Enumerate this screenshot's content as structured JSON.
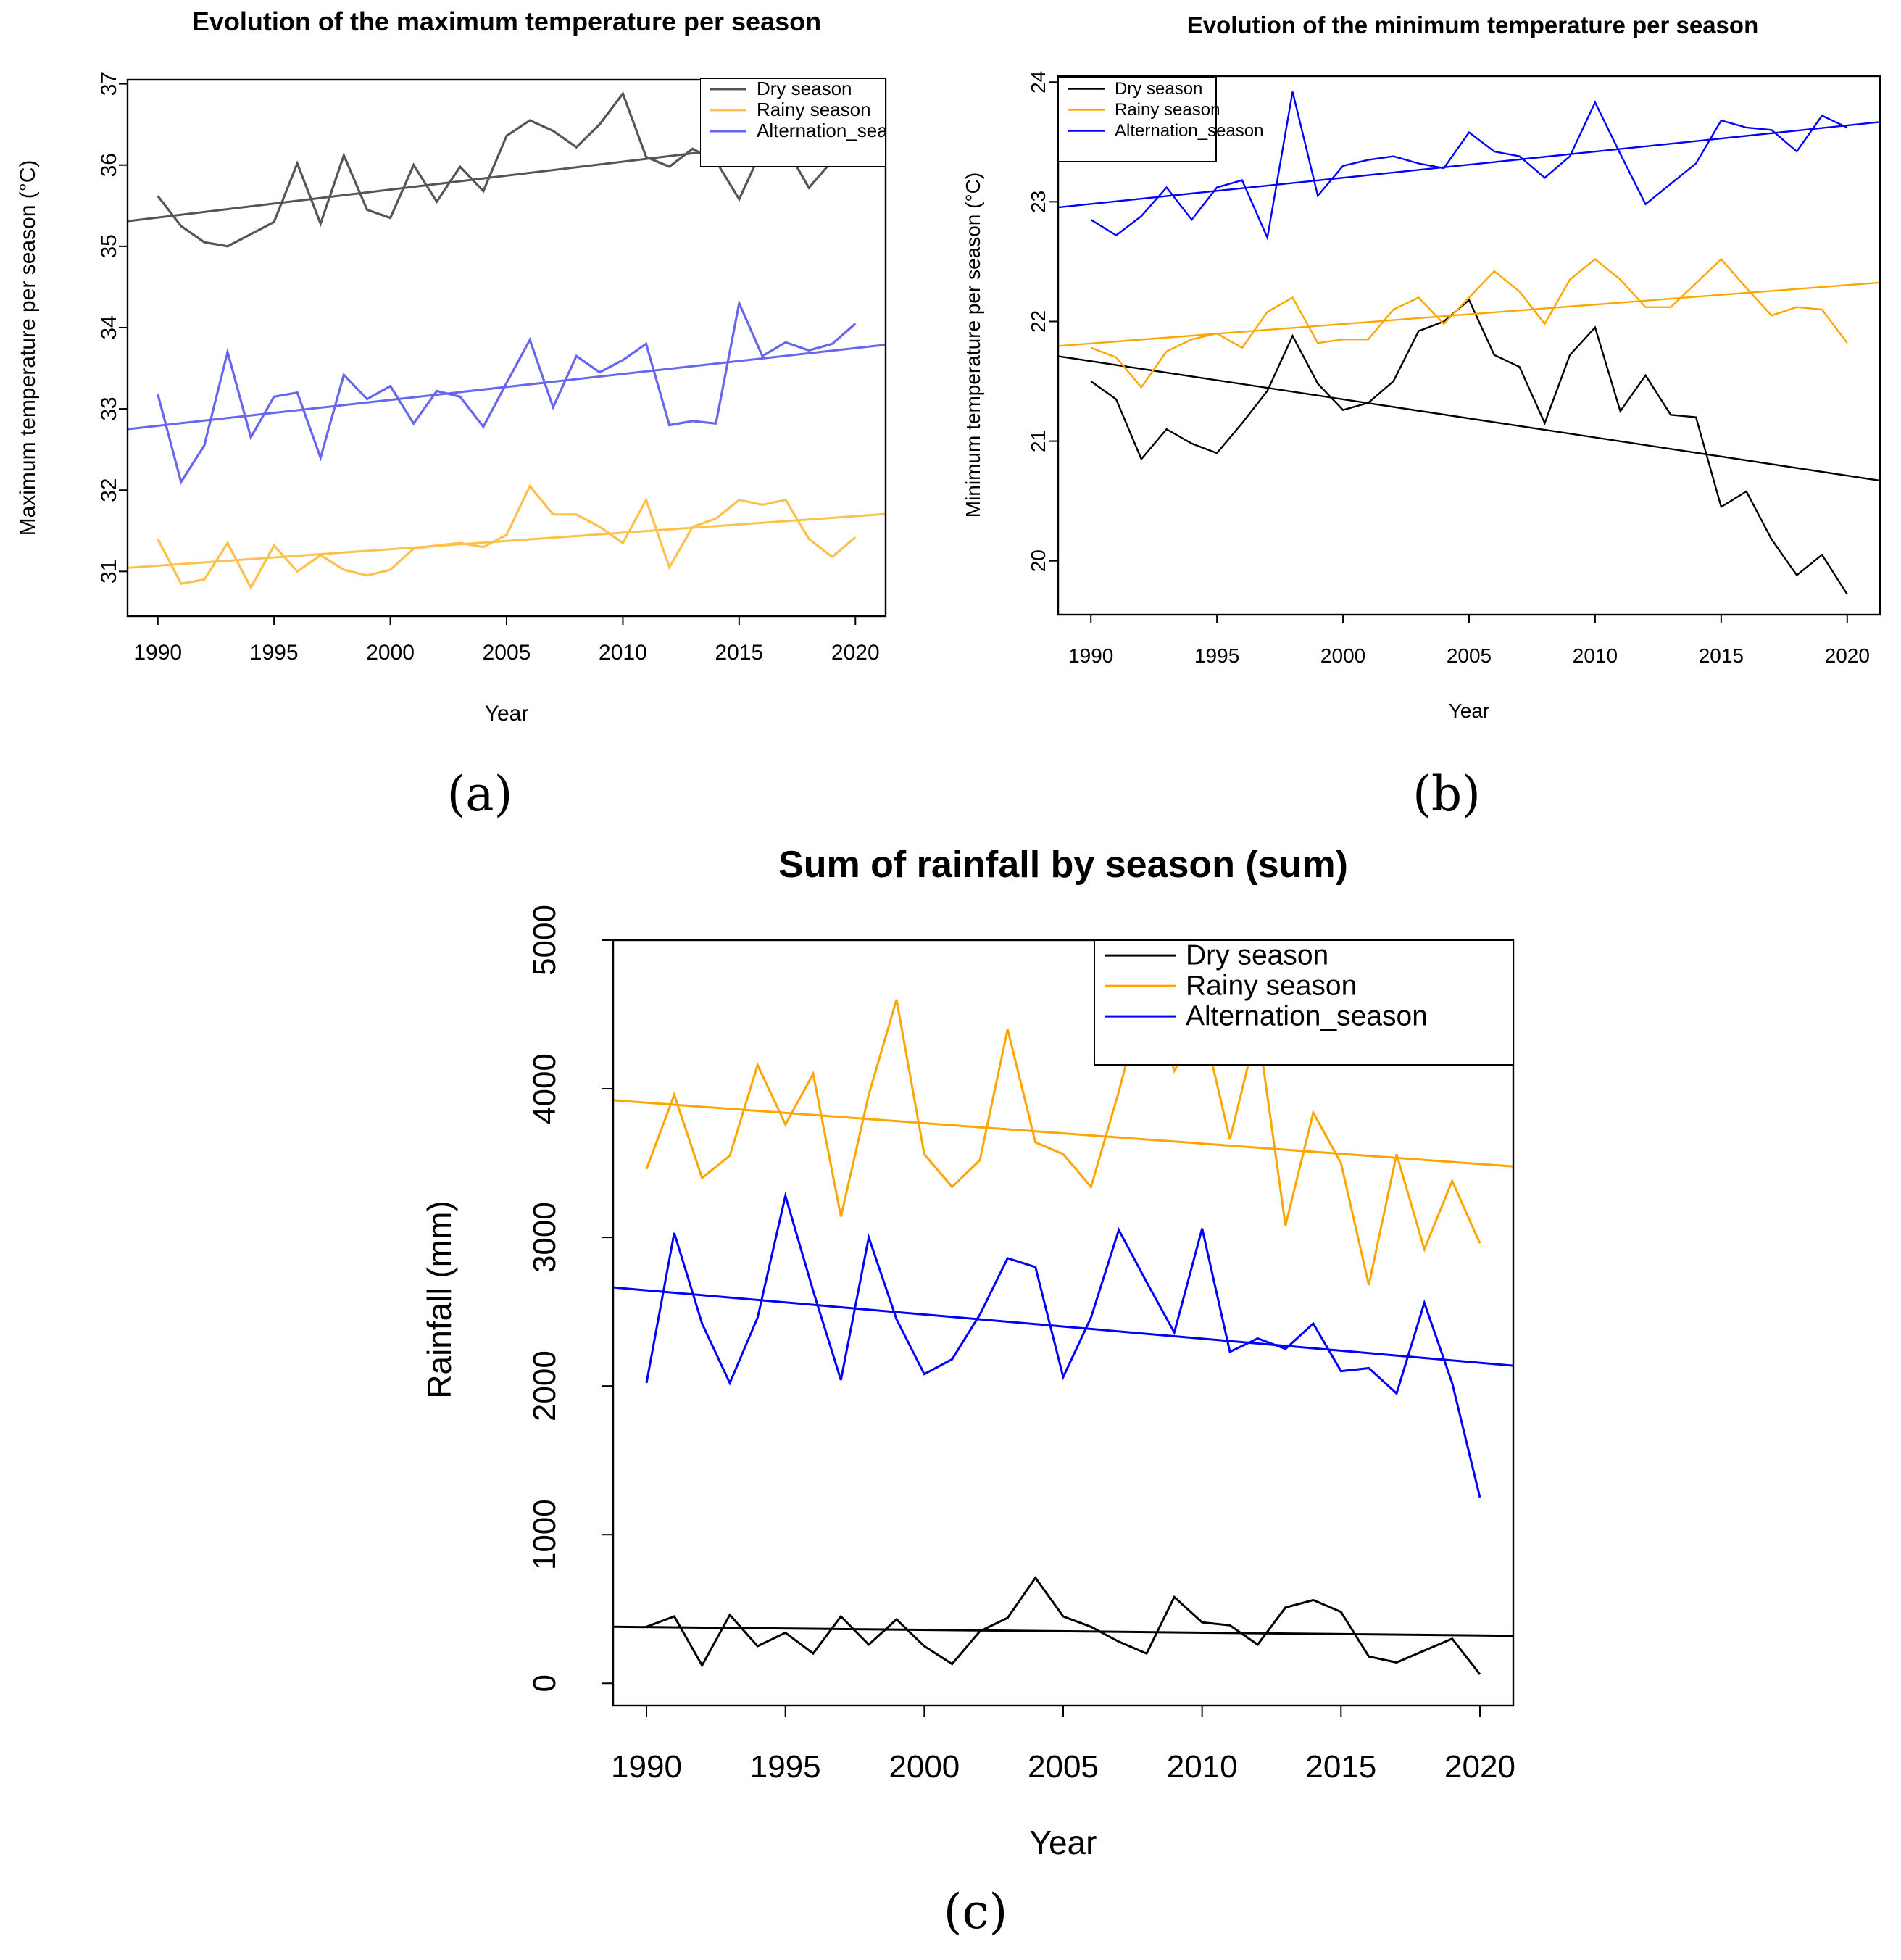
{
  "figure_labels": [
    "(a)",
    "(b)",
    "(c)"
  ],
  "chart_data": [
    {
      "id": "a",
      "type": "line",
      "title": "Evolution of the maximum temperature per season",
      "xlabel": "Year",
      "ylabel": "Maximum temperature per season (°C)",
      "xlim": [
        1988.7,
        2021.3
      ],
      "ylim": [
        30.45,
        37.05
      ],
      "xticks": [
        1990,
        1995,
        2000,
        2005,
        2010,
        2015,
        2020
      ],
      "yticks": [
        31,
        32,
        33,
        34,
        35,
        36,
        37
      ],
      "grid": false,
      "legend_position": "top-right",
      "legend_entries": [
        "Dry season",
        "Rainy season",
        "Alternation_sea"
      ],
      "x": [
        1990,
        1991,
        1992,
        1993,
        1994,
        1995,
        1996,
        1997,
        1998,
        1999,
        2000,
        2001,
        2002,
        2003,
        2004,
        2005,
        2006,
        2007,
        2008,
        2009,
        2010,
        2011,
        2012,
        2013,
        2014,
        2015,
        2016,
        2017,
        2018,
        2019,
        2020
      ],
      "series": [
        {
          "name": "Dry season",
          "color": "#555555",
          "values": [
            35.62,
            35.25,
            35.05,
            35.0,
            35.15,
            35.3,
            36.02,
            35.28,
            36.12,
            35.45,
            35.35,
            36.0,
            35.55,
            35.98,
            35.68,
            36.36,
            36.55,
            36.42,
            36.22,
            36.5,
            36.88,
            36.1,
            35.98,
            36.2,
            36.05,
            35.58,
            36.2,
            36.22,
            35.72,
            36.05,
            36.2
          ],
          "trend": [
            35.32,
            36.42
          ]
        },
        {
          "name": "Rainy season",
          "color": "#FFC04D",
          "values": [
            31.4,
            30.85,
            30.9,
            31.35,
            30.8,
            31.32,
            31.0,
            31.2,
            31.02,
            30.95,
            31.02,
            31.28,
            31.32,
            31.35,
            31.3,
            31.45,
            32.05,
            31.7,
            31.7,
            31.55,
            31.35,
            31.88,
            31.05,
            31.55,
            31.65,
            31.88,
            31.82,
            31.88,
            31.4,
            31.18,
            31.42
          ],
          "trend": [
            31.05,
            31.7
          ]
        },
        {
          "name": "Alternation_season",
          "color": "#6666EE",
          "values": [
            33.18,
            32.1,
            32.55,
            33.7,
            32.65,
            33.15,
            33.2,
            32.4,
            33.42,
            33.12,
            33.28,
            32.82,
            33.22,
            33.15,
            32.78,
            33.32,
            33.85,
            33.02,
            33.65,
            33.45,
            33.6,
            33.8,
            32.8,
            32.85,
            32.82,
            34.3,
            33.65,
            33.82,
            33.72,
            33.8,
            34.05
          ],
          "trend": [
            32.76,
            33.78
          ]
        }
      ]
    },
    {
      "id": "b",
      "type": "line",
      "title": "Evolution of the minimum temperature per season",
      "xlabel": "Year",
      "ylabel": "Minimum temperature per season (°C)",
      "xlim": [
        1988.7,
        2021.3
      ],
      "ylim": [
        19.55,
        24.05
      ],
      "xticks": [
        1990,
        1995,
        2000,
        2005,
        2010,
        2015,
        2020
      ],
      "yticks": [
        20,
        21,
        22,
        23,
        24
      ],
      "grid": false,
      "legend_position": "top-left",
      "legend_entries": [
        "Dry season",
        "Rainy season",
        "Alternation_season"
      ],
      "x": [
        1990,
        1991,
        1992,
        1993,
        1994,
        1995,
        1996,
        1997,
        1998,
        1999,
        2000,
        2001,
        2002,
        2003,
        2004,
        2005,
        2006,
        2007,
        2008,
        2009,
        2010,
        2011,
        2012,
        2013,
        2014,
        2015,
        2016,
        2017,
        2018,
        2019,
        2020
      ],
      "series": [
        {
          "name": "Dry season",
          "color": "#000000",
          "values": [
            21.5,
            21.35,
            20.85,
            21.1,
            20.98,
            20.9,
            21.15,
            21.42,
            21.88,
            21.48,
            21.26,
            21.32,
            21.5,
            21.92,
            22.0,
            22.18,
            21.72,
            21.62,
            21.15,
            21.72,
            21.95,
            21.25,
            21.55,
            21.22,
            21.2,
            20.45,
            20.58,
            20.18,
            19.88,
            20.05,
            19.72
          ],
          "trend": [
            21.7,
            20.68
          ]
        },
        {
          "name": "Rainy season",
          "color": "#FFA500",
          "values": [
            21.78,
            21.7,
            21.45,
            21.75,
            21.85,
            21.9,
            21.78,
            22.08,
            22.2,
            21.82,
            21.85,
            21.85,
            22.1,
            22.2,
            21.98,
            22.2,
            22.42,
            22.25,
            21.98,
            22.35,
            22.52,
            22.35,
            22.12,
            22.12,
            22.32,
            22.52,
            22.28,
            22.05,
            22.12,
            22.1,
            21.82
          ],
          "trend": [
            21.8,
            22.32
          ]
        },
        {
          "name": "Alternation_season",
          "color": "#0000FF",
          "values": [
            22.85,
            22.72,
            22.88,
            23.12,
            22.85,
            23.12,
            23.18,
            22.7,
            23.92,
            23.05,
            23.3,
            23.35,
            23.38,
            23.32,
            23.28,
            23.58,
            23.42,
            23.38,
            23.2,
            23.38,
            23.83,
            23.4,
            22.98,
            23.15,
            23.32,
            23.68,
            23.62,
            23.6,
            23.42,
            23.72,
            23.62
          ],
          "trend": [
            22.96,
            23.66
          ]
        }
      ]
    },
    {
      "id": "c",
      "type": "line",
      "title": "Sum of rainfall by season (sum)",
      "xlabel": "Year",
      "ylabel": "Rainfall (mm)",
      "xlim": [
        1988.8,
        2021.2
      ],
      "ylim": [
        -150,
        5000
      ],
      "xticks": [
        1990,
        1995,
        2000,
        2005,
        2010,
        2015,
        2020
      ],
      "yticks": [
        0,
        1000,
        2000,
        3000,
        4000,
        5000
      ],
      "grid": false,
      "legend_position": "top-right",
      "legend_entries": [
        "Dry season",
        "Rainy season",
        "Alternation_season"
      ],
      "x": [
        1990,
        1991,
        1992,
        1993,
        1994,
        1995,
        1996,
        1997,
        1998,
        1999,
        2000,
        2001,
        2002,
        2003,
        2004,
        2005,
        2006,
        2007,
        2008,
        2009,
        2010,
        2011,
        2012,
        2013,
        2014,
        2015,
        2016,
        2017,
        2018,
        2019,
        2020
      ],
      "series": [
        {
          "name": "Dry season",
          "color": "#000000",
          "values": [
            380,
            450,
            120,
            460,
            250,
            340,
            200,
            450,
            260,
            430,
            250,
            130,
            350,
            440,
            710,
            450,
            380,
            280,
            200,
            580,
            410,
            390,
            260,
            510,
            560,
            480,
            180,
            140,
            220,
            300,
            60
          ],
          "trend": [
            380,
            320
          ]
        },
        {
          "name": "Rainy season",
          "color": "#FFA500",
          "values": [
            3460,
            3960,
            3400,
            3550,
            4160,
            3760,
            4100,
            3140,
            3960,
            4600,
            3560,
            3340,
            3520,
            4400,
            3640,
            3560,
            3340,
            3980,
            4700,
            4120,
            4460,
            3660,
            4420,
            3080,
            3840,
            3500,
            2680,
            3560,
            2920,
            3380,
            2960
          ],
          "trend": [
            3920,
            3480
          ]
        },
        {
          "name": "Alternation_season",
          "color": "#0000FF",
          "values": [
            2020,
            3030,
            2420,
            2020,
            2460,
            3280,
            2640,
            2040,
            3000,
            2450,
            2080,
            2180,
            2480,
            2860,
            2800,
            2060,
            2460,
            3050,
            2700,
            2360,
            3060,
            2230,
            2320,
            2250,
            2420,
            2100,
            2120,
            1950,
            2560,
            2020,
            1250
          ],
          "trend": [
            2660,
            2140
          ]
        }
      ]
    }
  ]
}
